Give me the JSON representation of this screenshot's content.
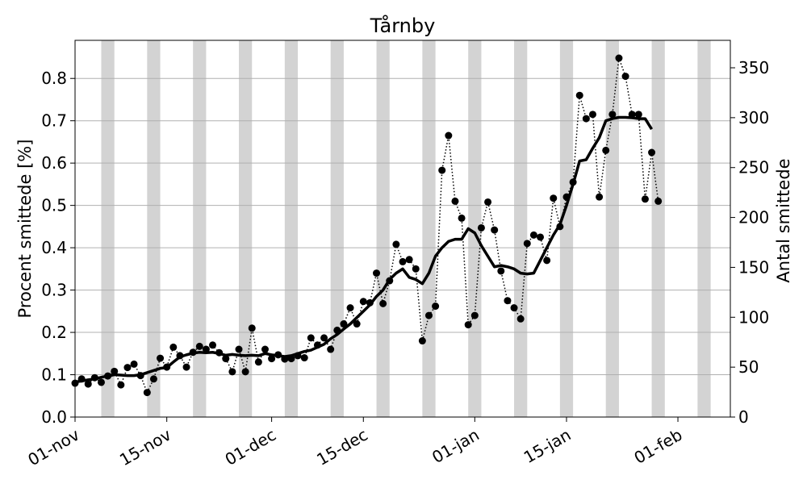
{
  "chart_data": {
    "type": "line",
    "title": "Tårnby",
    "ylabel": "Procent smittede [%]",
    "y2label": "Antal smittede",
    "x_start": "2020-11-01",
    "x_end": "2021-02-09",
    "ylim": [
      0,
      0.89
    ],
    "y2lim": [
      0,
      377.5
    ],
    "yticks": [
      0.0,
      0.1,
      0.2,
      0.3,
      0.4,
      0.5,
      0.6,
      0.7,
      0.8
    ],
    "ytick_labels": [
      "0.0",
      "0.1",
      "0.2",
      "0.3",
      "0.4",
      "0.5",
      "0.6",
      "0.7",
      "0.8"
    ],
    "y2ticks": [
      0,
      50,
      100,
      150,
      200,
      250,
      300,
      350
    ],
    "y2tick_labels": [
      "0",
      "50",
      "100",
      "150",
      "200",
      "250",
      "300",
      "350"
    ],
    "xticks": [
      {
        "date": "2020-11-01",
        "label": "01-nov"
      },
      {
        "date": "2020-11-15",
        "label": "15-nov"
      },
      {
        "date": "2020-12-01",
        "label": "01-dec"
      },
      {
        "date": "2020-12-15",
        "label": "15-dec"
      },
      {
        "date": "2021-01-01",
        "label": "01-jan"
      },
      {
        "date": "2021-01-15",
        "label": "15-jan"
      },
      {
        "date": "2021-02-01",
        "label": "01-feb"
      }
    ],
    "grid": "horizontal",
    "weekend_shading": [
      "2020-11-05",
      "2020-11-12",
      "2020-11-19",
      "2020-11-26",
      "2020-12-03",
      "2020-12-10",
      "2020-12-17",
      "2020-12-24",
      "2020-12-31",
      "2021-01-07",
      "2021-01-14",
      "2021-01-21",
      "2021-01-28",
      "2021-02-04"
    ],
    "series": [
      {
        "style": "dotted-markers",
        "color": "#000000",
        "x_first": "2020-11-01",
        "values": [
          0.08,
          0.09,
          0.078,
          0.093,
          0.082,
          0.097,
          0.108,
          0.076,
          0.117,
          0.125,
          0.098,
          0.058,
          0.09,
          0.139,
          0.118,
          0.165,
          0.145,
          0.118,
          0.153,
          0.167,
          0.16,
          0.17,
          0.152,
          0.138,
          0.107,
          0.16,
          0.107,
          0.21,
          0.13,
          0.16,
          0.138,
          0.147,
          0.137,
          0.138,
          0.145,
          0.14,
          0.187,
          0.17,
          0.187,
          0.16,
          0.205,
          0.22,
          0.258,
          0.22,
          0.273,
          0.27,
          0.34,
          0.268,
          0.322,
          0.408,
          0.367,
          0.372,
          0.35,
          0.18,
          0.24,
          0.262,
          0.583,
          0.665,
          0.51,
          0.47,
          0.218,
          0.24,
          0.447,
          0.508,
          0.442,
          0.345,
          0.275,
          0.258,
          0.232,
          0.41,
          0.43,
          0.425,
          0.37,
          0.517,
          0.45,
          0.52,
          0.555,
          0.76,
          0.705,
          0.715,
          0.52,
          0.63,
          0.715,
          0.848,
          0.805,
          0.715,
          0.715,
          0.515,
          0.625,
          0.51
        ]
      },
      {
        "style": "solid-thick",
        "color": "#000000",
        "x_first": "2020-11-01",
        "values": [
          0.083,
          0.085,
          0.088,
          0.09,
          0.094,
          0.097,
          0.1,
          0.099,
          0.098,
          0.098,
          0.1,
          0.105,
          0.11,
          0.115,
          0.117,
          0.13,
          0.142,
          0.147,
          0.151,
          0.153,
          0.152,
          0.153,
          0.15,
          0.146,
          0.148,
          0.146,
          0.145,
          0.146,
          0.145,
          0.15,
          0.147,
          0.145,
          0.143,
          0.145,
          0.15,
          0.155,
          0.158,
          0.165,
          0.172,
          0.185,
          0.195,
          0.208,
          0.22,
          0.235,
          0.25,
          0.265,
          0.285,
          0.3,
          0.325,
          0.34,
          0.35,
          0.33,
          0.325,
          0.315,
          0.34,
          0.38,
          0.4,
          0.415,
          0.42,
          0.42,
          0.445,
          0.435,
          0.405,
          0.38,
          0.355,
          0.358,
          0.355,
          0.35,
          0.34,
          0.338,
          0.34,
          0.37,
          0.4,
          0.43,
          0.455,
          0.5,
          0.55,
          0.605,
          0.608,
          0.635,
          0.66,
          0.7,
          0.705,
          0.708,
          0.708,
          0.707,
          0.705,
          0.705,
          0.68
        ]
      }
    ]
  }
}
